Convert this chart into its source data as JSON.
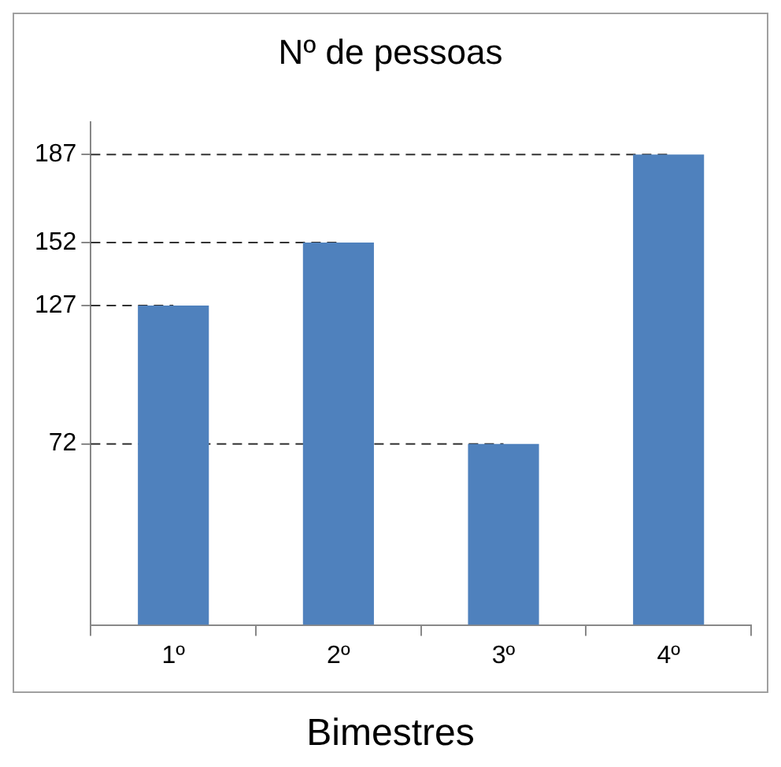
{
  "chart_data": {
    "type": "bar",
    "title": "Nº de pessoas",
    "xlabel": "Bimestres",
    "categories": [
      "1º",
      "2º",
      "3º",
      "4º"
    ],
    "values": [
      127,
      152,
      72,
      187
    ],
    "color": "#4f81bd",
    "ylim": [
      0,
      200
    ],
    "yticks": [
      72,
      127,
      152,
      187
    ],
    "grid": false,
    "legend": false,
    "ref_lines": [
      {
        "axis": "y",
        "value": 187,
        "line_style": "dashed"
      },
      {
        "axis": "y",
        "value": 152,
        "line_style": "dashed"
      },
      {
        "axis": "y",
        "value": 127,
        "line_style": "dashed"
      },
      {
        "axis": "y",
        "value": 72,
        "line_style": "dashed"
      }
    ]
  }
}
